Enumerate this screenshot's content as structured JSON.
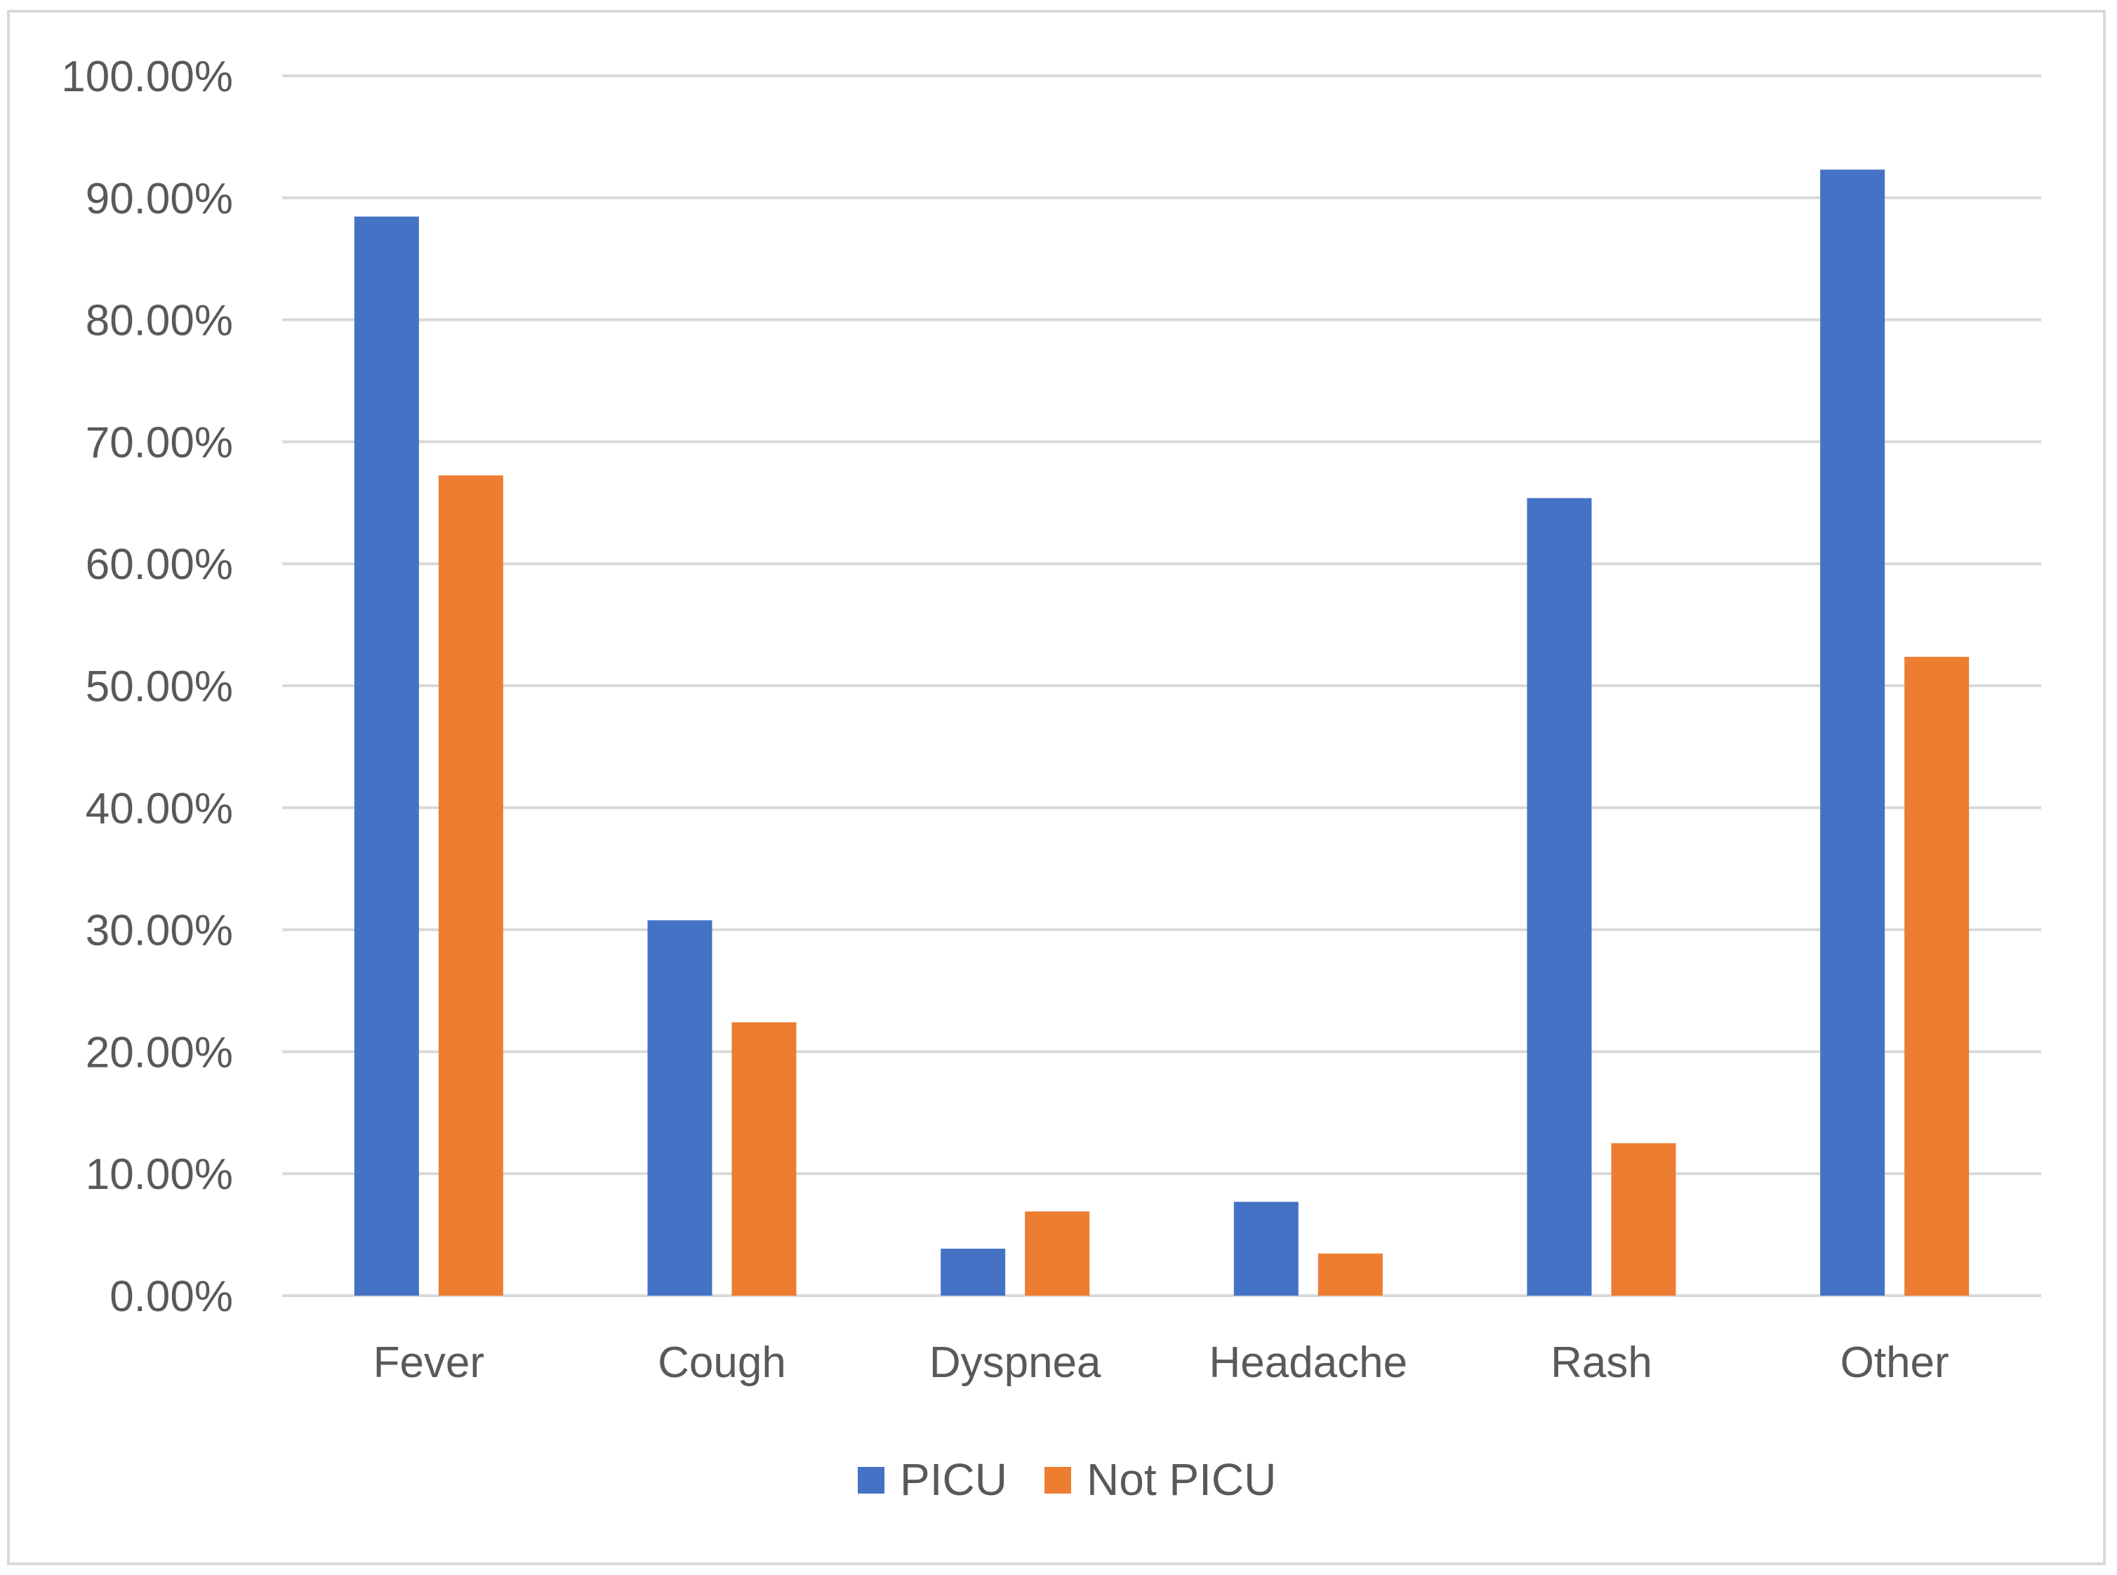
{
  "chart_data": {
    "type": "bar",
    "title": "",
    "xlabel": "",
    "ylabel": "",
    "categories": [
      "Fever",
      "Cough",
      "Dyspnea",
      "Headache",
      "Rash",
      "Other"
    ],
    "series": [
      {
        "name": "PICU",
        "color": "#4472C4",
        "values": [
          88.46,
          30.77,
          3.85,
          7.69,
          65.38,
          92.31
        ]
      },
      {
        "name": "Not PICU",
        "color": "#ED7D31",
        "values": [
          67.24,
          22.41,
          6.9,
          3.45,
          12.5,
          52.37
        ]
      }
    ],
    "ylim": [
      0,
      100
    ],
    "yticks": [
      "0.00%",
      "10.00%",
      "20.00%",
      "30.00%",
      "40.00%",
      "50.00%",
      "60.00%",
      "70.00%",
      "80.00%",
      "90.00%",
      "100.00%"
    ],
    "grid": true,
    "legend_position": "bottom"
  }
}
